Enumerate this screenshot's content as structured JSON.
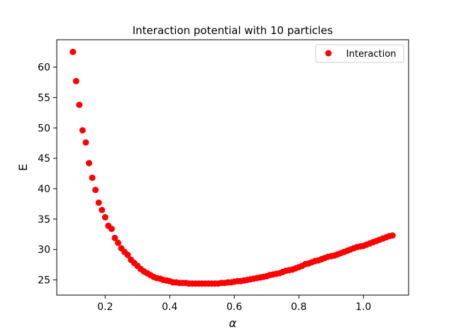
{
  "chart_data": {
    "type": "scatter",
    "title": "Interaction potential with 10 particles",
    "xlabel": "α",
    "ylabel": "E",
    "xlim": [
      0.05,
      1.14
    ],
    "ylim": [
      22.5,
      64.5
    ],
    "xticks": [
      0.2,
      0.4,
      0.6,
      0.8,
      1.0
    ],
    "xtick_labels": [
      "0.2",
      "0.4",
      "0.6",
      "0.8",
      "1.0"
    ],
    "yticks": [
      25,
      30,
      35,
      40,
      45,
      50,
      55,
      60
    ],
    "ytick_labels": [
      "25",
      "30",
      "35",
      "40",
      "45",
      "50",
      "55",
      "60"
    ],
    "grid": false,
    "legend": {
      "position": "top-right",
      "entries": [
        "Interaction"
      ]
    },
    "series": [
      {
        "name": "Interaction",
        "color": "#ff0000",
        "marker": "circle",
        "x": [
          0.1,
          0.11,
          0.12,
          0.13,
          0.14,
          0.15,
          0.16,
          0.17,
          0.18,
          0.19,
          0.2,
          0.21,
          0.22,
          0.23,
          0.24,
          0.25,
          0.26,
          0.27,
          0.28,
          0.29,
          0.3,
          0.31,
          0.32,
          0.33,
          0.34,
          0.35,
          0.36,
          0.37,
          0.38,
          0.39,
          0.4,
          0.41,
          0.42,
          0.43,
          0.44,
          0.45,
          0.46,
          0.47,
          0.48,
          0.49,
          0.5,
          0.51,
          0.52,
          0.53,
          0.54,
          0.55,
          0.56,
          0.57,
          0.58,
          0.59,
          0.6,
          0.61,
          0.62,
          0.63,
          0.64,
          0.65,
          0.66,
          0.67,
          0.68,
          0.69,
          0.7,
          0.71,
          0.72,
          0.73,
          0.74,
          0.75,
          0.76,
          0.77,
          0.78,
          0.79,
          0.8,
          0.81,
          0.82,
          0.83,
          0.84,
          0.85,
          0.86,
          0.87,
          0.88,
          0.89,
          0.9,
          0.91,
          0.92,
          0.93,
          0.94,
          0.95,
          0.96,
          0.97,
          0.98,
          0.99,
          1.0,
          1.01,
          1.02,
          1.03,
          1.04,
          1.05,
          1.06,
          1.07,
          1.08,
          1.09
        ],
        "y": [
          62.5,
          57.7,
          53.8,
          49.6,
          47.6,
          44.2,
          41.8,
          39.8,
          37.7,
          36.5,
          35.3,
          33.9,
          33.4,
          31.9,
          31.1,
          30.2,
          29.6,
          29.1,
          28.3,
          27.8,
          27.3,
          26.8,
          26.4,
          26.1,
          25.8,
          25.5,
          25.3,
          25.2,
          25.0,
          24.9,
          24.8,
          24.6,
          24.6,
          24.5,
          24.5,
          24.5,
          24.4,
          24.4,
          24.4,
          24.4,
          24.4,
          24.4,
          24.4,
          24.4,
          24.4,
          24.4,
          24.5,
          24.5,
          24.6,
          24.6,
          24.7,
          24.8,
          24.8,
          24.9,
          25.0,
          25.1,
          25.2,
          25.3,
          25.4,
          25.5,
          25.6,
          25.8,
          25.9,
          26.0,
          26.1,
          26.3,
          26.5,
          26.6,
          26.7,
          26.9,
          27.1,
          27.3,
          27.6,
          27.7,
          27.9,
          28.1,
          28.2,
          28.4,
          28.6,
          28.8,
          28.9,
          29.0,
          29.2,
          29.4,
          29.6,
          29.8,
          30.0,
          30.2,
          30.4,
          30.5,
          30.6,
          30.8,
          31.0,
          31.2,
          31.4,
          31.6,
          31.8,
          32.0,
          32.2,
          32.3
        ]
      }
    ]
  }
}
